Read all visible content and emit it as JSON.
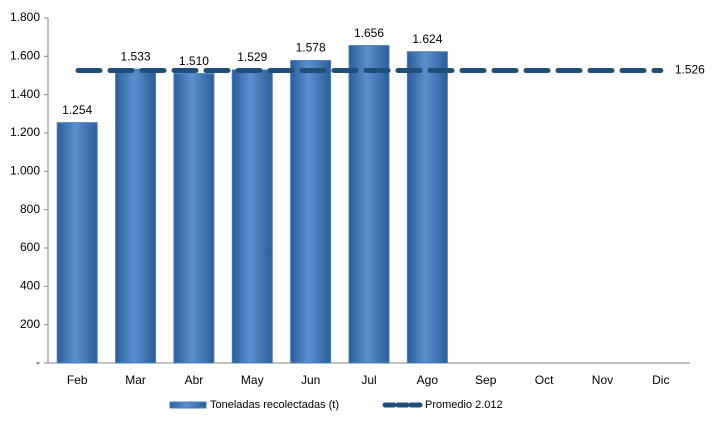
{
  "chart_data": {
    "type": "bar",
    "categories": [
      "Feb",
      "Mar",
      "Abr",
      "May",
      "Jun",
      "Jul",
      "Ago",
      "Sep",
      "Oct",
      "Nov",
      "Dic"
    ],
    "series": [
      {
        "name": "Toneladas recolectadas (t)",
        "type": "bar",
        "color": "#4a7ebb",
        "values": [
          1254,
          1533,
          1510,
          1529,
          1578,
          1656,
          1624,
          null,
          null,
          null,
          null
        ],
        "value_labels": [
          "1.254",
          "1.533",
          "1.510",
          "1.529",
          "1.578",
          "1.656",
          "1.624",
          null,
          null,
          null,
          null
        ]
      },
      {
        "name": "Promedio 2.012",
        "type": "line",
        "color": "#1f4e79",
        "values": [
          1526,
          1526,
          1526,
          1526,
          1526,
          1526,
          1526,
          1526,
          1526,
          1526,
          1526
        ],
        "value_labels": [
          null,
          null,
          null,
          null,
          null,
          null,
          null,
          null,
          null,
          null,
          "1.526"
        ]
      }
    ],
    "ylim": [
      0,
      1800
    ],
    "yticks": [
      {
        "value": 0,
        "label": "-"
      },
      200,
      400,
      600,
      800,
      {
        "value": 1000,
        "label": "1.000"
      },
      {
        "value": 1200,
        "label": "1.200"
      },
      {
        "value": 1400,
        "label": "1.400"
      },
      {
        "value": 1600,
        "label": "1.600"
      },
      {
        "value": 1800,
        "label": "1.800"
      }
    ],
    "legend": "bottom"
  }
}
